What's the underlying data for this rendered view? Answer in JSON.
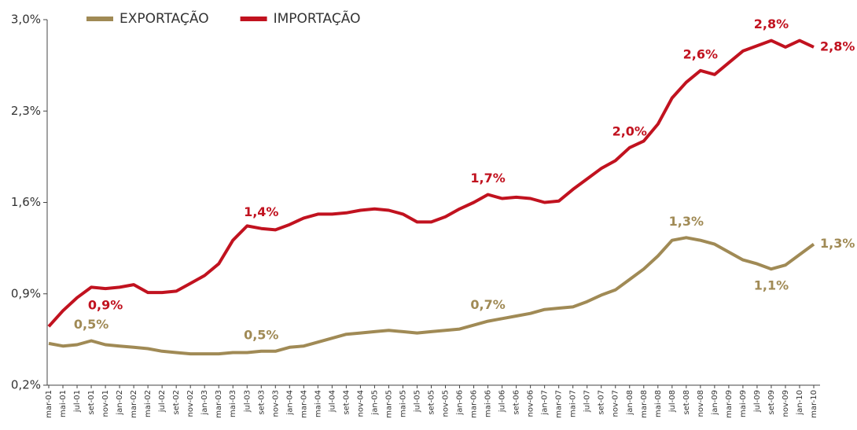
{
  "chart_data": {
    "type": "line",
    "categories": [
      "mar-01",
      "mai-01",
      "jul-01",
      "set-01",
      "nov-01",
      "jan-02",
      "mar-02",
      "mai-02",
      "jul-02",
      "set-02",
      "nov-02",
      "jan-03",
      "mar-03",
      "mai-03",
      "jul-03",
      "set-03",
      "nov-03",
      "jan-04",
      "mar-04",
      "mai-04",
      "jul-04",
      "set-04",
      "nov-04",
      "jan-05",
      "mar-05",
      "mai-05",
      "jul-05",
      "set-05",
      "nov-05",
      "jan-06",
      "mar-06",
      "mai-06",
      "jul-06",
      "set-06",
      "nov-06",
      "jan-07",
      "mar-07",
      "mai-07",
      "jul-07",
      "set-07",
      "nov-07",
      "jan-08",
      "mar-08",
      "mai-08",
      "jul-08",
      "set-08",
      "nov-08",
      "jan-09",
      "mar-09",
      "mai-09",
      "jul-09",
      "set-09",
      "nov-09",
      "jan-10",
      "mar-10"
    ],
    "series": [
      {
        "name": "EXPORTAÇÃO",
        "color": "#a08a55",
        "values": [
          0.52,
          0.5,
          0.51,
          0.54,
          0.51,
          0.5,
          0.49,
          0.48,
          0.46,
          0.45,
          0.44,
          0.44,
          0.44,
          0.45,
          0.45,
          0.46,
          0.46,
          0.49,
          0.5,
          0.53,
          0.56,
          0.59,
          0.6,
          0.61,
          0.62,
          0.61,
          0.6,
          0.61,
          0.62,
          0.63,
          0.66,
          0.69,
          0.71,
          0.73,
          0.75,
          0.78,
          0.79,
          0.8,
          0.84,
          0.89,
          0.93,
          1.01,
          1.09,
          1.19,
          1.31,
          1.33,
          1.31,
          1.28,
          1.22,
          1.16,
          1.13,
          1.09,
          1.12,
          1.2,
          1.28
        ],
        "value_labels": [
          null,
          null,
          null,
          "0,5%",
          null,
          null,
          null,
          null,
          null,
          null,
          null,
          null,
          null,
          null,
          null,
          "0,5%",
          null,
          null,
          null,
          null,
          null,
          null,
          null,
          null,
          null,
          null,
          null,
          null,
          null,
          null,
          null,
          "0,7%",
          null,
          null,
          null,
          null,
          null,
          null,
          null,
          null,
          null,
          null,
          null,
          null,
          null,
          "1,3%",
          null,
          null,
          null,
          null,
          null,
          "1,1%",
          null,
          null,
          "1,3%"
        ]
      },
      {
        "name": "IMPORTAÇÃO",
        "color": "#c1121f",
        "values": [
          0.65,
          0.77,
          0.87,
          0.95,
          0.94,
          0.95,
          0.97,
          0.91,
          0.91,
          0.92,
          0.98,
          1.04,
          1.13,
          1.31,
          1.42,
          1.4,
          1.39,
          1.43,
          1.48,
          1.51,
          1.51,
          1.52,
          1.54,
          1.55,
          1.54,
          1.51,
          1.45,
          1.45,
          1.49,
          1.55,
          1.6,
          1.66,
          1.63,
          1.64,
          1.63,
          1.6,
          1.61,
          1.7,
          1.78,
          1.86,
          1.92,
          2.02,
          2.07,
          2.2,
          2.4,
          2.52,
          2.61,
          2.58,
          2.67,
          2.76,
          2.8,
          2.84,
          2.79,
          2.84,
          2.79
        ],
        "value_labels": [
          null,
          null,
          null,
          null,
          "0,9%",
          null,
          null,
          null,
          null,
          null,
          null,
          null,
          null,
          null,
          null,
          "1,4%",
          null,
          null,
          null,
          null,
          null,
          null,
          null,
          null,
          null,
          null,
          null,
          null,
          null,
          null,
          null,
          "1,7%",
          null,
          null,
          null,
          null,
          null,
          null,
          null,
          null,
          null,
          "2,0%",
          null,
          null,
          null,
          null,
          "2,6%",
          null,
          null,
          null,
          null,
          "2,8%",
          null,
          null,
          "2,8%"
        ]
      }
    ],
    "ylim": [
      0.2,
      3.0
    ],
    "yticks": [
      {
        "value": 0.2,
        "label": "0,2%"
      },
      {
        "value": 0.9,
        "label": "0,9%"
      },
      {
        "value": 1.6,
        "label": "1,6%"
      },
      {
        "value": 2.3,
        "label": "2,3%"
      },
      {
        "value": 3.0,
        "label": "3,0%"
      }
    ],
    "grid": false,
    "legend": "top-left"
  }
}
